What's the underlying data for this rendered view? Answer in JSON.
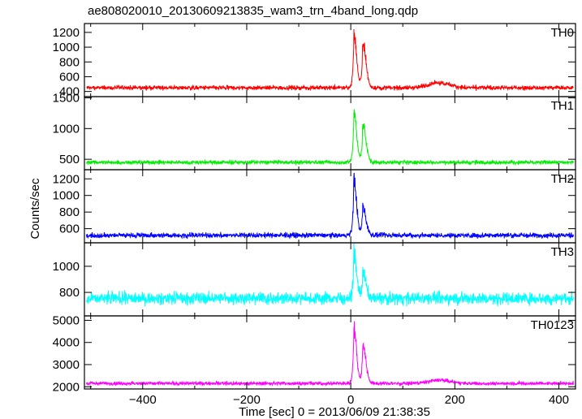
{
  "chart_data": {
    "type": "line",
    "title": "ae808020010_20130609213835_wam3_trn_4band_long.qdp",
    "xlabel": "Time [sec] 0 = 2013/06/09 21:38:35",
    "ylabel": "Counts/sec",
    "xlim": [
      -512,
      432
    ],
    "x_ticks": [
      -400,
      -200,
      0,
      200,
      400
    ],
    "x_tick_labels": [
      "−400",
      "−200",
      "0",
      "200",
      "400"
    ],
    "series": [
      {
        "name": "TH0",
        "color": "#ff0000",
        "ylim": [
          330,
          1320
        ],
        "y_ticks": [
          400,
          600,
          800,
          1000,
          1200
        ],
        "y_tick_labels": [
          "400",
          "600",
          "800",
          "1000",
          "1200"
        ],
        "baseline": 450,
        "noise": 45,
        "peaks": [
          {
            "t": 6,
            "value": 1300,
            "width": 5
          },
          {
            "t": 23,
            "value": 1160,
            "width": 6
          }
        ],
        "bumps": [
          {
            "t": 170,
            "value": 520,
            "width": 20
          }
        ]
      },
      {
        "name": "TH1",
        "color": "#00ee00",
        "ylim": [
          330,
          1520
        ],
        "y_ticks": [
          500,
          1000,
          1500
        ],
        "y_tick_labels": [
          "500",
          "1000",
          "1500"
        ],
        "baseline": 450,
        "noise": 50,
        "peaks": [
          {
            "t": 6,
            "value": 1400,
            "width": 5
          },
          {
            "t": 23,
            "value": 1150,
            "width": 6
          }
        ],
        "bumps": []
      },
      {
        "name": "TH2",
        "color": "#0000ff",
        "ylim": [
          430,
          1310
        ],
        "y_ticks": [
          600,
          800,
          1000,
          1200
        ],
        "y_tick_labels": [
          "600",
          "800",
          "1000",
          "1200"
        ],
        "baseline": 520,
        "noise": 45,
        "peaks": [
          {
            "t": 6,
            "value": 1300,
            "width": 5
          },
          {
            "t": 23,
            "value": 920,
            "width": 6
          }
        ],
        "bumps": []
      },
      {
        "name": "TH3",
        "color": "#00ffff",
        "ylim": [
          620,
          1180
        ],
        "y_ticks": [
          800,
          1000
        ],
        "y_tick_labels": [
          "800",
          "1000"
        ],
        "baseline": 755,
        "noise": 70,
        "peaks": [
          {
            "t": 6,
            "value": 1150,
            "width": 5
          },
          {
            "t": 23,
            "value": 980,
            "width": 6
          }
        ],
        "bumps": []
      },
      {
        "name": "TH0123",
        "color": "#ff00ff",
        "ylim": [
          1900,
          5200
        ],
        "y_ticks": [
          2000,
          3000,
          4000,
          5000
        ],
        "y_tick_labels": [
          "2000",
          "3000",
          "4000",
          "5000"
        ],
        "baseline": 2150,
        "noise": 120,
        "peaks": [
          {
            "t": 6,
            "value": 5000,
            "width": 5
          },
          {
            "t": 23,
            "value": 4100,
            "width": 6
          }
        ],
        "bumps": [
          {
            "t": 170,
            "value": 2300,
            "width": 20
          }
        ]
      }
    ],
    "grid": false,
    "legend": "panel labels top-right"
  }
}
